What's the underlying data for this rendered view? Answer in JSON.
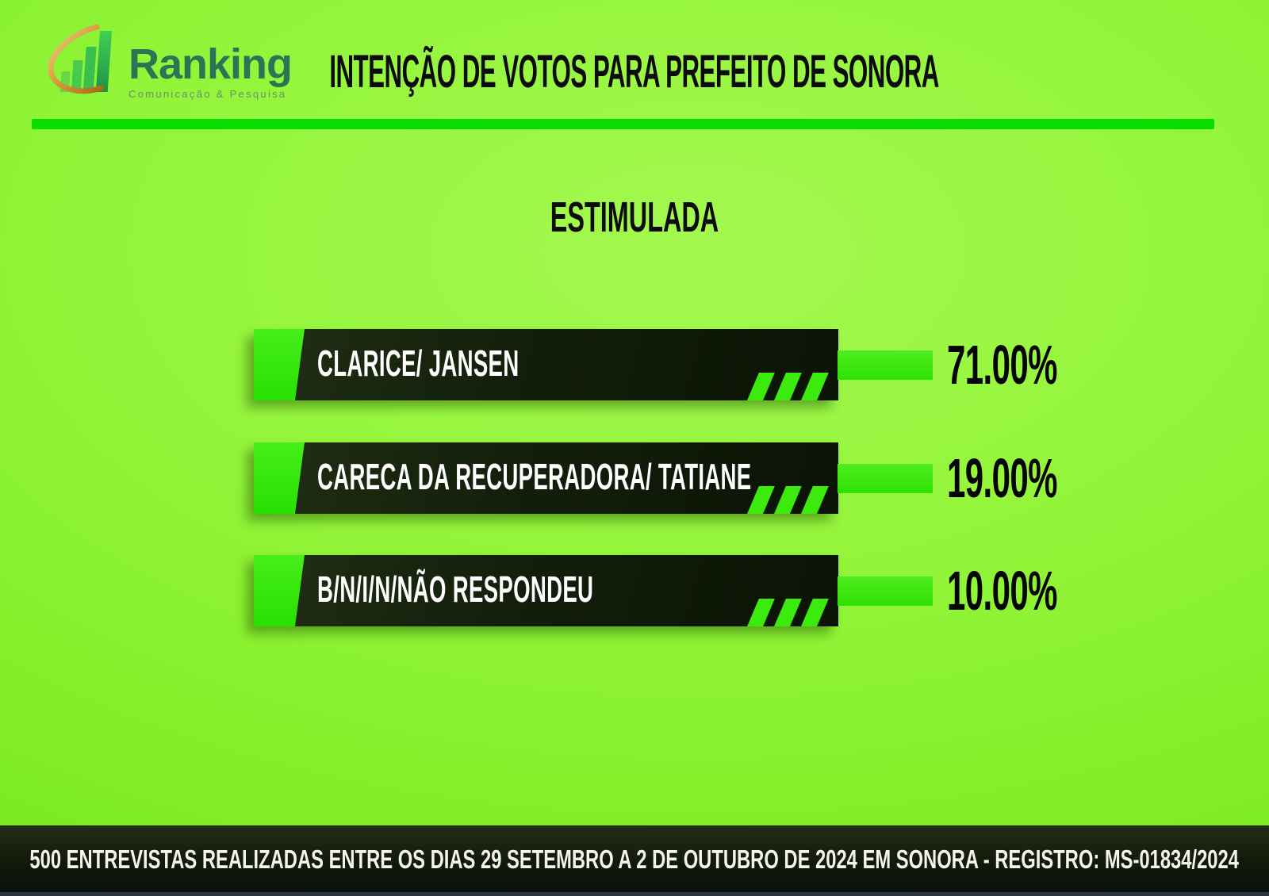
{
  "brand": {
    "name": "Ranking",
    "tagline": "Comunicação & Pesquisa",
    "icon": "bar-chart-with-gold-swoosh"
  },
  "header": {
    "title": "INTENÇÃO DE VOTOS PARA PREFEITO DE SONORA"
  },
  "subtitle": "ESTIMULADA",
  "chart_data": {
    "type": "bar",
    "orientation": "horizontal",
    "title": "ESTIMULADA",
    "categories": [
      "CLARICE/ JANSEN",
      "CARECA DA RECUPERADORA/ TATIANE",
      "B/N/I/N/NÃO RESPONDEU"
    ],
    "values": [
      71.0,
      19.0,
      10.0
    ],
    "value_labels": [
      "71.00%",
      "19.00%",
      "10.00%"
    ],
    "unit": "%",
    "legend": "none",
    "grid": false,
    "note": "stylized list: all candidate bars drawn equal length, value shown as label"
  },
  "footer": {
    "text": "500 ENTREVISTAS REALIZADAS ENTRE OS DIAS 29 SETEMBRO  A 2 DE OUTUBRO DE 2024 EM SONORA - REGISTRO: MS-01834/2024"
  },
  "colors": {
    "background_center": "#a4f94f",
    "background_edge": "#72e417",
    "divider_green": "#08dc00",
    "bar_dark": "#131f0a",
    "accent_green": "#31e607",
    "label_text": "#ffffff",
    "value_text": "#050505",
    "footer_bg": "#121809",
    "footer_text": "#f4f4ef",
    "brand_green": "#2b7454",
    "swoosh_gold": "#c98b2d"
  }
}
